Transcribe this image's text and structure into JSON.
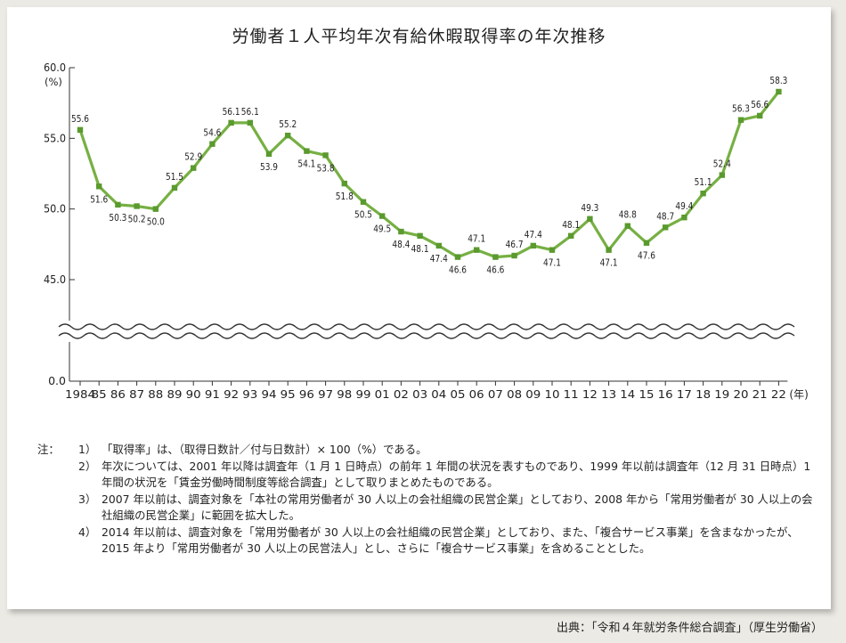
{
  "title": "労働者１人平均年次有給休暇取得率の年次推移",
  "chart_data": {
    "type": "line",
    "title": "労働者１人平均年次有給休暇取得率の年次推移",
    "ylabel": "(%)",
    "xlabel": "(年)",
    "y_ticks": [
      "60.0",
      "55.0",
      "50.0",
      "45.0",
      "0.0"
    ],
    "ylim_upper": [
      45,
      60
    ],
    "y_axis_break": "45.0 → 0.0 (wavy break)",
    "x_tick_labels": [
      "1984",
      "85",
      "86",
      "87",
      "88",
      "89",
      "90",
      "91",
      "92",
      "93",
      "94",
      "95",
      "96",
      "97",
      "98",
      "99",
      "01",
      "02",
      "03",
      "04",
      "05",
      "06",
      "07",
      "08",
      "09",
      "10",
      "11",
      "12",
      "13",
      "14",
      "15",
      "16",
      "17",
      "18",
      "19",
      "20",
      "21",
      "22"
    ],
    "x": [
      "1984",
      "1985",
      "1986",
      "1987",
      "1988",
      "1989",
      "1990",
      "1991",
      "1992",
      "1993",
      "1994",
      "1995",
      "1996",
      "1997",
      "1998",
      "1999",
      "2001",
      "2002",
      "2003",
      "2004",
      "2005",
      "2006",
      "2007",
      "2008",
      "2009",
      "2010",
      "2011",
      "2012",
      "2013",
      "2014",
      "2015",
      "2016",
      "2017",
      "2018",
      "2019",
      "2020",
      "2021",
      "2022"
    ],
    "values": [
      55.6,
      51.6,
      50.3,
      50.2,
      50.0,
      51.5,
      52.9,
      54.6,
      56.1,
      56.1,
      53.9,
      55.2,
      54.1,
      53.8,
      51.8,
      50.5,
      49.5,
      48.4,
      48.1,
      47.4,
      46.6,
      47.1,
      46.6,
      46.7,
      47.4,
      47.1,
      48.1,
      49.3,
      47.1,
      48.8,
      47.6,
      48.7,
      49.4,
      51.1,
      52.4,
      56.3,
      56.6,
      58.3
    ],
    "data_labels": [
      "55.6",
      "51.6",
      "50.3",
      "50.2",
      "50.0",
      "51.5",
      "52.9",
      "54.6",
      "56.1",
      "56.1",
      "53.9",
      "55.2",
      "54.1",
      "53.8",
      "51.8",
      "50.5",
      "49.5",
      "48.4",
      "48.1",
      "47.4",
      "46.6",
      "47.1",
      "46.6",
      "46.7",
      "47.4",
      "47.1",
      "48.1",
      "49.3",
      "47.1",
      "48.8",
      "47.6",
      "48.7",
      "49.4",
      "51.1",
      "52.4",
      "56.3",
      "56.6",
      "58.3"
    ],
    "line_color": "#76b043",
    "marker_color": "#5a9a2e",
    "grid": false
  },
  "notes": {
    "head": "注：",
    "items": [
      {
        "num": "1）",
        "text": "「取得率」は、（取得日数計／付与日数計）× 100（%）である。"
      },
      {
        "num": "2）",
        "text": "年次については、2001 年以降は調査年（1 月 1 日時点）の前年 1 年間の状況を表すものであり、1999 年以前は調査年（12 月 31 日時点）1 年間の状況を「賃金労働時間制度等総合調査」として取りまとめたものである。"
      },
      {
        "num": "3）",
        "text": "2007 年以前は、調査対象を「本社の常用労働者が 30 人以上の会社組織の民営企業」としており、2008 年から「常用労働者が 30 人以上の会社組織の民営企業」に範囲を拡大した。"
      },
      {
        "num": "4）",
        "text": "2014 年以前は、調査対象を「常用労働者が 30 人以上の会社組織の民営企業」としており、また、「複合サービス事業」を含まなかったが、2015 年より「常用労働者が 30 人以上の民営法人」とし、さらに「複合サービス事業」を含めることとした。"
      }
    ]
  },
  "source": "出典：「令和４年就労条件総合調査」（厚生労働省）"
}
